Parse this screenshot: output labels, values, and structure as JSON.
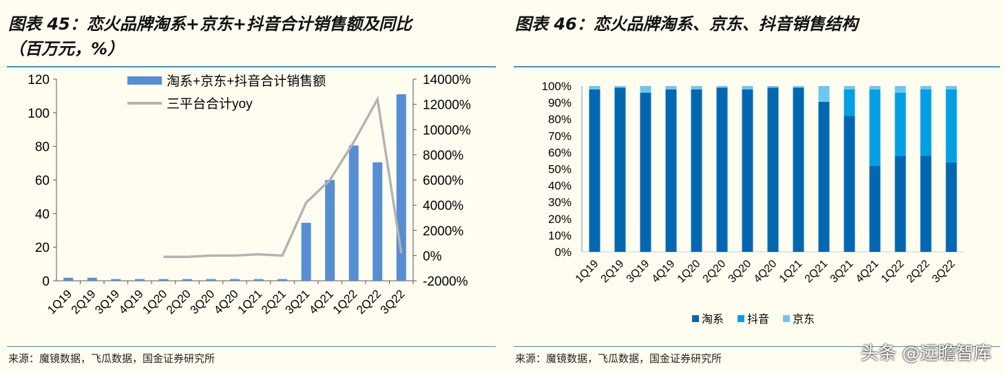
{
  "left": {
    "title_line1": "图表 45：恋火品牌淘系+京东+抖音合计销售额及同比",
    "title_line2": "（百万元，%）",
    "source": "来源：魔镜数据，飞瓜数据，国金证券研究所"
  },
  "right": {
    "title": "图表 46：恋火品牌淘系、京东、抖音销售结构",
    "source": "来源：魔镜数据，飞瓜数据，国金证券研究所"
  },
  "watermark": "头条 @远瞻智库",
  "chart_data": [
    {
      "type": "bar",
      "categories": [
        "1Q19",
        "2Q19",
        "3Q19",
        "4Q19",
        "1Q20",
        "2Q20",
        "3Q20",
        "4Q20",
        "1Q21",
        "2Q21",
        "3Q21",
        "4Q21",
        "1Q22",
        "2Q22",
        "3Q22"
      ],
      "series": [
        {
          "name": "淘系+京东+抖音合计销售额",
          "type": "bar",
          "axis": "left",
          "color": "#558ed5",
          "values": [
            1.8,
            1.8,
            1,
            1,
            1,
            1,
            1,
            1,
            1,
            1,
            34.5,
            60,
            80.5,
            70.5,
            111
          ]
        },
        {
          "name": "三平台合计yoy",
          "type": "line",
          "axis": "right",
          "color": "#b3b3b3",
          "values": [
            null,
            null,
            null,
            null,
            -100,
            -100,
            0,
            0,
            100,
            0,
            4200,
            6000,
            9000,
            12400,
            200
          ]
        }
      ],
      "ylim": [
        0,
        120
      ],
      "yticks": [
        "0",
        "20",
        "40",
        "60",
        "80",
        "100",
        "120"
      ],
      "y2lim": [
        -2000,
        14000
      ],
      "y2ticks": [
        "-2000%",
        "0%",
        "2000%",
        "4000%",
        "6000%",
        "8000%",
        "10000%",
        "12000%",
        "14000%"
      ],
      "legend": "top"
    },
    {
      "type": "bar",
      "stacked": true,
      "categories": [
        "1Q19",
        "2Q19",
        "3Q19",
        "4Q19",
        "1Q20",
        "2Q20",
        "3Q20",
        "4Q20",
        "1Q21",
        "2Q21",
        "3Q21",
        "4Q21",
        "1Q22",
        "2Q22",
        "3Q22"
      ],
      "series": [
        {
          "name": "淘系",
          "color": "#0068b3",
          "values": [
            98,
            99,
            96,
            98,
            98,
            99,
            98,
            99,
            99,
            90.5,
            82,
            52,
            58,
            58,
            54
          ]
        },
        {
          "name": "抖音",
          "color": "#00a0e6",
          "values": [
            0,
            0,
            0,
            0,
            0,
            0,
            0,
            0,
            0,
            0,
            16,
            46,
            38,
            40,
            44
          ]
        },
        {
          "name": "京东",
          "color": "#6cc6f2",
          "values": [
            2,
            1,
            4,
            2,
            2,
            1,
            2,
            1,
            1,
            9.5,
            2,
            2,
            4,
            2,
            2
          ]
        }
      ],
      "ylim": [
        0,
        100
      ],
      "yticks": [
        "0%",
        "10%",
        "20%",
        "30%",
        "40%",
        "50%",
        "60%",
        "70%",
        "80%",
        "90%",
        "100%"
      ],
      "legend": "bottom"
    }
  ]
}
